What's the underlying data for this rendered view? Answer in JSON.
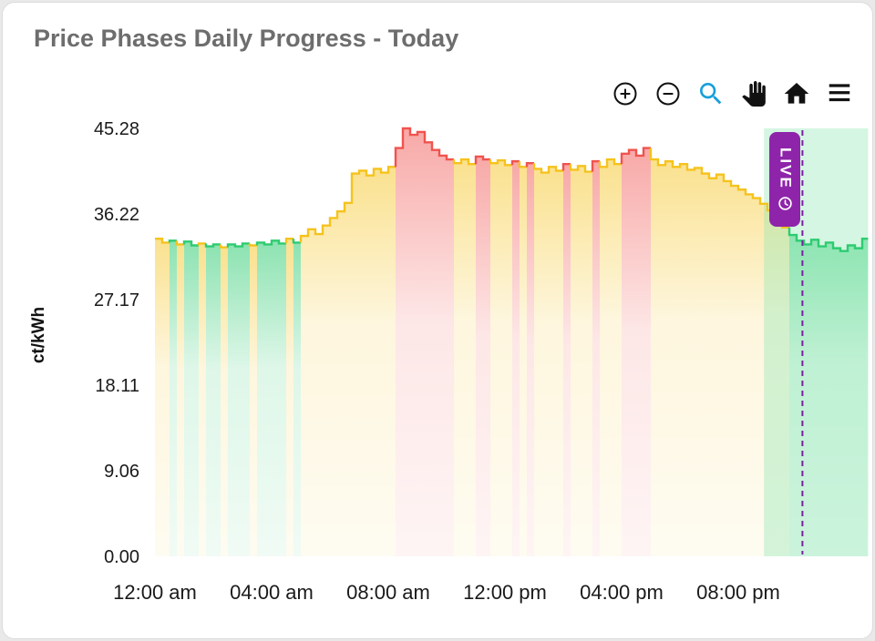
{
  "card": {
    "title": "Price Phases Daily Progress - Today"
  },
  "toolbar": {
    "items": [
      {
        "name": "zoom-in"
      },
      {
        "name": "zoom-out"
      },
      {
        "name": "box-zoom",
        "active_color": "#189fdb"
      },
      {
        "name": "pan"
      },
      {
        "name": "home"
      },
      {
        "name": "menu"
      }
    ]
  },
  "chart_data": {
    "type": "area",
    "step": "after",
    "title": "Price Phases Daily Progress - Today",
    "ylabel": "ct/kWh",
    "xlabel": "",
    "ylim": [
      0,
      45.28
    ],
    "xlim_hours": [
      0,
      24.45
    ],
    "grid": false,
    "y_ticks": [
      {
        "v": 45.28,
        "label": "45.28"
      },
      {
        "v": 36.22,
        "label": "36.22"
      },
      {
        "v": 27.17,
        "label": "27.17"
      },
      {
        "v": 18.11,
        "label": "18.11"
      },
      {
        "v": 9.06,
        "label": "9.06"
      },
      {
        "v": 0.0,
        "label": "0.00"
      }
    ],
    "x_ticks": [
      {
        "t": 0,
        "label": "12:00 am"
      },
      {
        "t": 4,
        "label": "04:00 am"
      },
      {
        "t": 8,
        "label": "08:00 am"
      },
      {
        "t": 12,
        "label": "12:00 pm"
      },
      {
        "t": 16,
        "label": "04:00 pm"
      },
      {
        "t": 20,
        "label": "08:00 pm"
      }
    ],
    "phases": {
      "g": "#2ecb71",
      "y": "#f5c31d",
      "r": "#f0534f"
    },
    "points": [
      [
        0,
        33.6,
        "y"
      ],
      [
        0.25,
        33.2,
        "y"
      ],
      [
        0.5,
        33.4,
        "g"
      ],
      [
        0.75,
        33.0,
        "y"
      ],
      [
        1.0,
        33.3,
        "g"
      ],
      [
        1.25,
        32.9,
        "g"
      ],
      [
        1.5,
        33.1,
        "y"
      ],
      [
        1.75,
        32.8,
        "g"
      ],
      [
        2.0,
        33.0,
        "g"
      ],
      [
        2.25,
        32.7,
        "y"
      ],
      [
        2.5,
        33.0,
        "g"
      ],
      [
        2.75,
        32.8,
        "g"
      ],
      [
        3.0,
        33.1,
        "g"
      ],
      [
        3.25,
        32.9,
        "y"
      ],
      [
        3.5,
        33.2,
        "g"
      ],
      [
        3.75,
        33.0,
        "g"
      ],
      [
        4.0,
        33.4,
        "g"
      ],
      [
        4.25,
        33.1,
        "g"
      ],
      [
        4.5,
        33.6,
        "y"
      ],
      [
        4.75,
        33.2,
        "g"
      ],
      [
        5.0,
        33.9,
        "y"
      ],
      [
        5.25,
        34.6,
        "y"
      ],
      [
        5.5,
        34.1,
        "y"
      ],
      [
        5.75,
        35.0,
        "y"
      ],
      [
        6.0,
        35.8,
        "y"
      ],
      [
        6.25,
        36.5,
        "y"
      ],
      [
        6.5,
        37.4,
        "y"
      ],
      [
        6.75,
        40.5,
        "y"
      ],
      [
        7.0,
        40.8,
        "y"
      ],
      [
        7.25,
        40.3,
        "y"
      ],
      [
        7.5,
        41.0,
        "y"
      ],
      [
        7.75,
        40.6,
        "y"
      ],
      [
        8.0,
        41.2,
        "y"
      ],
      [
        8.25,
        43.2,
        "r"
      ],
      [
        8.5,
        45.28,
        "r"
      ],
      [
        8.75,
        44.6,
        "r"
      ],
      [
        9.0,
        44.9,
        "r"
      ],
      [
        9.25,
        43.8,
        "r"
      ],
      [
        9.5,
        43.0,
        "r"
      ],
      [
        9.75,
        42.4,
        "r"
      ],
      [
        10.0,
        42.0,
        "r"
      ],
      [
        10.25,
        41.6,
        "y"
      ],
      [
        10.5,
        42.0,
        "y"
      ],
      [
        10.75,
        41.5,
        "y"
      ],
      [
        11.0,
        42.3,
        "r"
      ],
      [
        11.25,
        42.0,
        "r"
      ],
      [
        11.5,
        41.6,
        "y"
      ],
      [
        11.75,
        41.9,
        "y"
      ],
      [
        12.0,
        41.4,
        "y"
      ],
      [
        12.25,
        41.8,
        "r"
      ],
      [
        12.5,
        41.2,
        "y"
      ],
      [
        12.75,
        41.6,
        "r"
      ],
      [
        13.0,
        41.0,
        "y"
      ],
      [
        13.25,
        40.6,
        "y"
      ],
      [
        13.5,
        41.2,
        "y"
      ],
      [
        13.75,
        40.8,
        "y"
      ],
      [
        14.0,
        41.5,
        "r"
      ],
      [
        14.25,
        40.9,
        "y"
      ],
      [
        14.5,
        41.3,
        "y"
      ],
      [
        14.75,
        40.7,
        "y"
      ],
      [
        15.0,
        41.8,
        "r"
      ],
      [
        15.25,
        41.2,
        "y"
      ],
      [
        15.5,
        42.0,
        "y"
      ],
      [
        15.75,
        41.5,
        "y"
      ],
      [
        16.0,
        42.6,
        "r"
      ],
      [
        16.25,
        43.0,
        "r"
      ],
      [
        16.5,
        42.4,
        "r"
      ],
      [
        16.75,
        43.2,
        "r"
      ],
      [
        17.0,
        42.0,
        "y"
      ],
      [
        17.25,
        41.4,
        "y"
      ],
      [
        17.5,
        41.8,
        "y"
      ],
      [
        17.75,
        41.2,
        "y"
      ],
      [
        18.0,
        41.5,
        "y"
      ],
      [
        18.25,
        40.9,
        "y"
      ],
      [
        18.5,
        41.1,
        "y"
      ],
      [
        18.75,
        40.5,
        "y"
      ],
      [
        19.0,
        40.0,
        "y"
      ],
      [
        19.25,
        40.4,
        "y"
      ],
      [
        19.5,
        39.7,
        "y"
      ],
      [
        19.75,
        39.2,
        "y"
      ],
      [
        20.0,
        38.8,
        "y"
      ],
      [
        20.25,
        38.3,
        "y"
      ],
      [
        20.5,
        37.9,
        "y"
      ],
      [
        20.75,
        37.3,
        "y"
      ],
      [
        21.0,
        36.6,
        "y"
      ],
      [
        21.25,
        35.6,
        "y"
      ],
      [
        21.5,
        34.8,
        "y"
      ],
      [
        21.75,
        34.0,
        "g"
      ],
      [
        22.0,
        33.4,
        "g"
      ],
      [
        22.25,
        33.0,
        "g"
      ],
      [
        22.5,
        33.5,
        "g"
      ],
      [
        22.75,
        32.8,
        "g"
      ],
      [
        23.0,
        33.2,
        "g"
      ],
      [
        23.25,
        32.6,
        "g"
      ],
      [
        23.5,
        32.3,
        "g"
      ],
      [
        23.75,
        32.9,
        "g"
      ],
      [
        24.0,
        32.6,
        "g"
      ],
      [
        24.25,
        33.6,
        "g"
      ]
    ],
    "now_marker": {
      "t": 22.2,
      "color": "#7b1fa2",
      "style": "dashed",
      "label": "LIVE"
    },
    "live_region": {
      "start": 20.88,
      "end": 24.45,
      "color": "#8fe7b4",
      "opacity": 0.38
    }
  }
}
